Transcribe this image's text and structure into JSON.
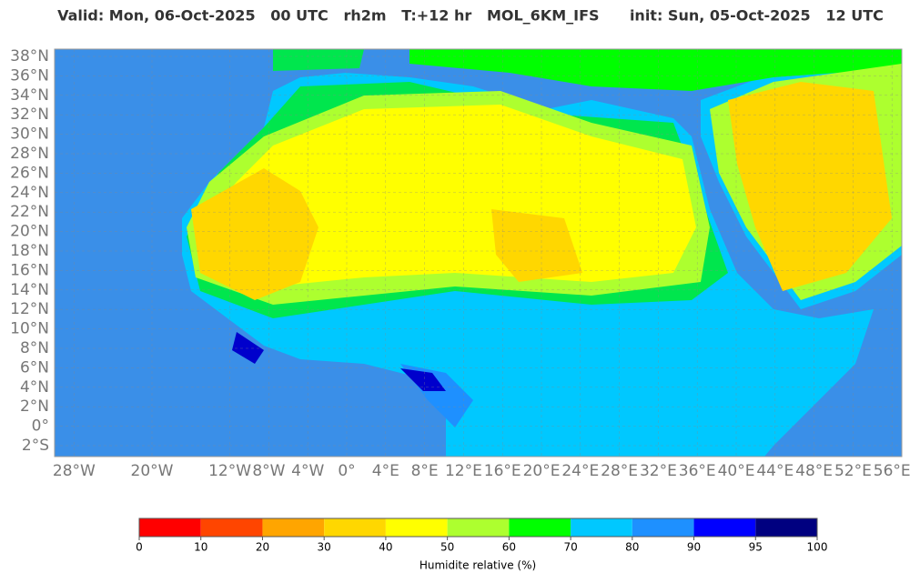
{
  "header": {
    "title": "Valid: Mon, 06-Oct-2025   00 UTC   rh2m   T:+12 hr   MOL_6KM_IFS      init: Sun, 05-Oct-2025   12 UTC"
  },
  "map": {
    "lat_ticks": [
      {
        "value": 38,
        "label": "38°N"
      },
      {
        "value": 36,
        "label": "36°N"
      },
      {
        "value": 34,
        "label": "34°N"
      },
      {
        "value": 32,
        "label": "32°N"
      },
      {
        "value": 30,
        "label": "30°N"
      },
      {
        "value": 28,
        "label": "28°N"
      },
      {
        "value": 26,
        "label": "26°N"
      },
      {
        "value": 24,
        "label": "24°N"
      },
      {
        "value": 22,
        "label": "22°N"
      },
      {
        "value": 20,
        "label": "20°N"
      },
      {
        "value": 18,
        "label": "18°N"
      },
      {
        "value": 16,
        "label": "16°N"
      },
      {
        "value": 14,
        "label": "14°N"
      },
      {
        "value": 12,
        "label": "12°N"
      },
      {
        "value": 10,
        "label": "10°N"
      },
      {
        "value": 8,
        "label": "8°N"
      },
      {
        "value": 6,
        "label": "6°N"
      },
      {
        "value": 4,
        "label": "4°N"
      },
      {
        "value": 2,
        "label": "2°N"
      },
      {
        "value": 0,
        "label": "0°"
      },
      {
        "value": -2,
        "label": "2°S"
      }
    ],
    "lon_ticks": [
      {
        "value": -28,
        "label": "28°W"
      },
      {
        "value": -20,
        "label": "20°W"
      },
      {
        "value": -12,
        "label": "12°W"
      },
      {
        "value": -8,
        "label": "8°W"
      },
      {
        "value": -4,
        "label": "4°W"
      },
      {
        "value": 0,
        "label": "0°"
      },
      {
        "value": 4,
        "label": "4°E"
      },
      {
        "value": 8,
        "label": "8°E"
      },
      {
        "value": 12,
        "label": "12°E"
      },
      {
        "value": 16,
        "label": "16°E"
      },
      {
        "value": 20,
        "label": "20°E"
      },
      {
        "value": 24,
        "label": "24°E"
      },
      {
        "value": 28,
        "label": "28°E"
      },
      {
        "value": 32,
        "label": "32°E"
      },
      {
        "value": 36,
        "label": "36°E"
      },
      {
        "value": 40,
        "label": "40°E"
      },
      {
        "value": 44,
        "label": "44°E"
      },
      {
        "value": 48,
        "label": "48°E"
      },
      {
        "value": 52,
        "label": "52°E"
      },
      {
        "value": 56,
        "label": "56°E"
      }
    ]
  },
  "colorbar": {
    "boundaries": [
      0,
      10,
      20,
      30,
      40,
      50,
      60,
      70,
      80,
      90,
      95,
      100
    ],
    "colors": [
      "#ff0000",
      "#ff4500",
      "#ffa500",
      "#ffd700",
      "#ffff00",
      "#adff2f",
      "#00ff00",
      "#00c8ff",
      "#1e90ff",
      "#0000ff",
      "#000080"
    ],
    "label": "Humidite relative (%)"
  }
}
